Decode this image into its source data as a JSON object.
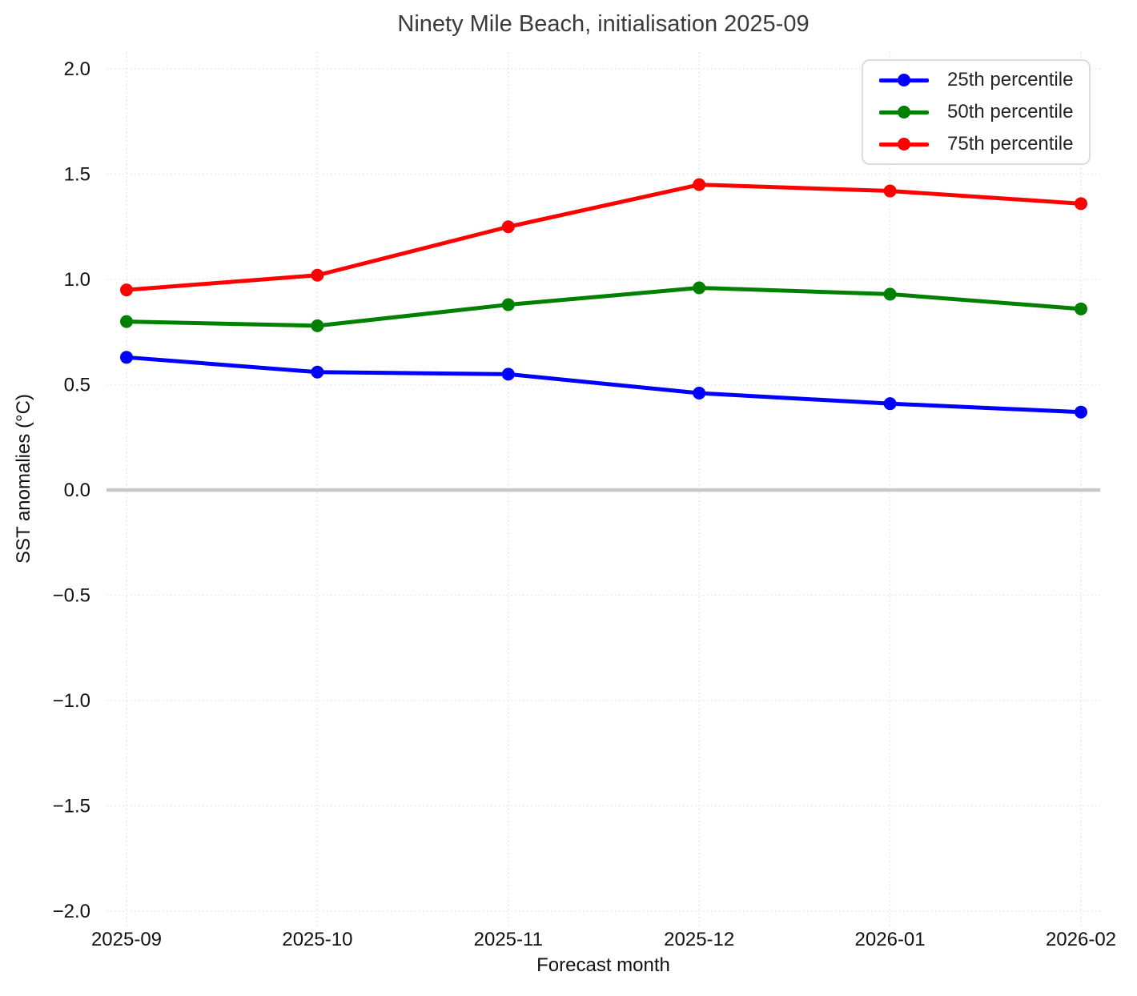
{
  "chart_data": {
    "type": "line",
    "title": "Ninety Mile Beach, initialisation 2025-09",
    "xlabel": "Forecast month",
    "ylabel": "SST anomalies (°C)",
    "x": [
      "2025-09",
      "2025-10",
      "2025-11",
      "2025-12",
      "2026-01",
      "2026-02"
    ],
    "series": [
      {
        "name": "25th percentile",
        "color": "#0000ff",
        "values": [
          0.63,
          0.56,
          0.55,
          0.46,
          0.41,
          0.37
        ]
      },
      {
        "name": "50th percentile",
        "color": "#008000",
        "values": [
          0.8,
          0.78,
          0.88,
          0.96,
          0.93,
          0.86
        ]
      },
      {
        "name": "75th percentile",
        "color": "#ff0000",
        "values": [
          0.95,
          1.02,
          1.25,
          1.45,
          1.42,
          1.36
        ]
      }
    ],
    "ylim": [
      -2.0,
      2.0
    ],
    "yticks": [
      {
        "v": -2.0,
        "label": "−2.0"
      },
      {
        "v": -1.5,
        "label": "−1.5"
      },
      {
        "v": -1.0,
        "label": "−1.0"
      },
      {
        "v": -0.5,
        "label": "−0.5"
      },
      {
        "v": 0.0,
        "label": "0.0"
      },
      {
        "v": 0.5,
        "label": "0.5"
      },
      {
        "v": 1.0,
        "label": "1.0"
      },
      {
        "v": 1.5,
        "label": "1.5"
      },
      {
        "v": 2.0,
        "label": "2.0"
      }
    ],
    "grid": true,
    "legend_position": "upper right",
    "colors": {
      "grid": "#e7e7e7",
      "zero_line": "#c9c9c9",
      "title_text": "#3a3a3a",
      "tick_text": "#111111"
    }
  }
}
